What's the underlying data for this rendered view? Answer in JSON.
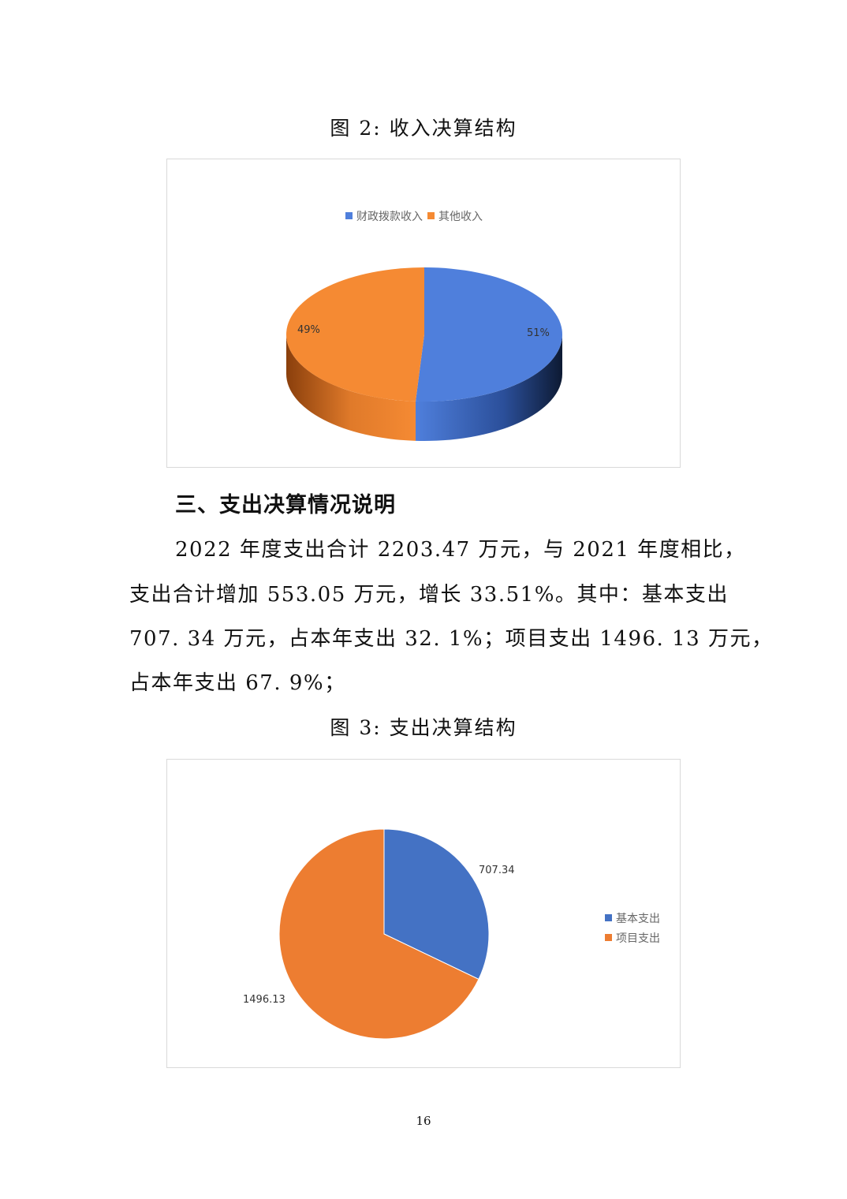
{
  "figure2": {
    "caption": "图 2:  收入决算结构"
  },
  "section": {
    "heading": "三、支出决算情况说明",
    "lines": [
      "2022 年度支出合计 2203.47 万元，与 2021 年度相比，",
      "支出合计增加 553.05 万元，增长 33.51%。其中：基本支出",
      "707. 34 万元，占本年支出 32. 1%；项目支出 1496. 13 万元，",
      "占本年支出 67. 9%；"
    ]
  },
  "figure3": {
    "caption": "图 3:  支出决算结构"
  },
  "page_number": "16",
  "chart_data": [
    {
      "type": "pie",
      "style": "3d",
      "legend_position": "top",
      "categories": [
        "财政拨款收入",
        "其他收入"
      ],
      "values": [
        51,
        49
      ],
      "data_labels": [
        "51%",
        "49%"
      ],
      "colors": [
        "#4f7fdc",
        "#f58a33"
      ]
    },
    {
      "type": "pie",
      "legend_position": "right",
      "categories": [
        "基本支出",
        "项目支出"
      ],
      "values": [
        707.34,
        1496.13
      ],
      "data_labels": [
        "707.34",
        "1496.13"
      ],
      "colors": [
        "#4472c4",
        "#ed7d31"
      ]
    }
  ]
}
